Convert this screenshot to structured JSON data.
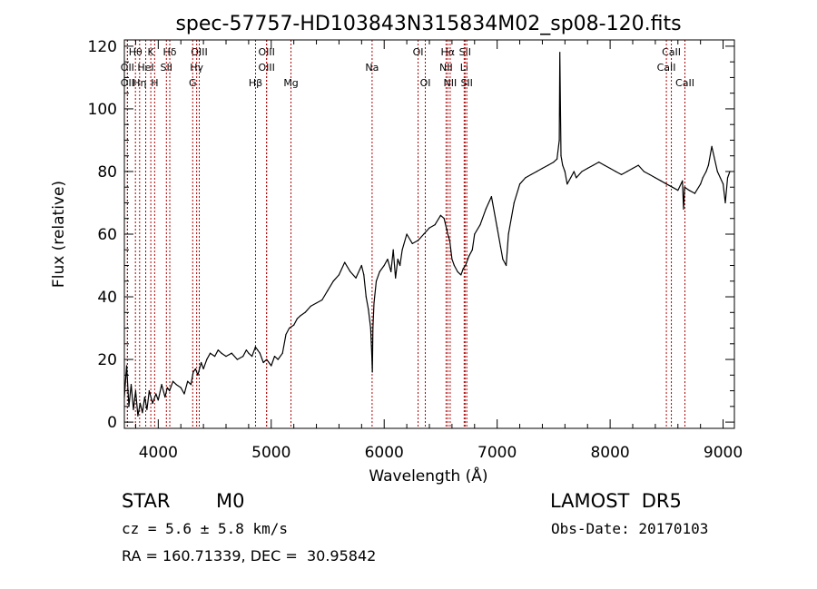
{
  "chart_data": {
    "type": "line",
    "title": "spec-57757-HD103843N315834M02_sp08-120.fits",
    "xlabel": "Wavelength (Å)",
    "ylabel": "Flux (relative)",
    "xlim": [
      3700,
      9100
    ],
    "ylim": [
      -2,
      122
    ],
    "xticks": [
      4000,
      5000,
      6000,
      7000,
      8000,
      9000
    ],
    "yticks": [
      0,
      20,
      40,
      60,
      80,
      100,
      120
    ],
    "grid": false,
    "series": [
      {
        "x": [
          3700,
          3720,
          3740,
          3760,
          3780,
          3800,
          3820,
          3840,
          3860,
          3880,
          3900,
          3920,
          3950,
          3980,
          4000,
          4030,
          4060,
          4080,
          4100,
          4130,
          4160,
          4200,
          4230,
          4260,
          4290,
          4310,
          4330,
          4350,
          4380,
          4400,
          4430,
          4460,
          4500,
          4530,
          4560,
          4600,
          4650,
          4700,
          4750,
          4780,
          4800,
          4830,
          4860,
          4880,
          4900,
          4930,
          4960,
          5000,
          5030,
          5060,
          5100,
          5130,
          5160,
          5200,
          5230,
          5260,
          5300,
          5350,
          5400,
          5450,
          5500,
          5550,
          5600,
          5650,
          5700,
          5750,
          5800,
          5820,
          5840,
          5860,
          5880,
          5890,
          5895,
          5900,
          5910,
          5930,
          5960,
          6000,
          6030,
          6060,
          6080,
          6100,
          6120,
          6140,
          6160,
          6200,
          6250,
          6300,
          6350,
          6400,
          6450,
          6500,
          6530,
          6550,
          6563,
          6580,
          6600,
          6620,
          6650,
          6680,
          6700,
          6720,
          6750,
          6780,
          6800,
          6850,
          6900,
          6950,
          7000,
          7030,
          7050,
          7080,
          7100,
          7150,
          7200,
          7250,
          7300,
          7350,
          7400,
          7450,
          7500,
          7530,
          7550,
          7555,
          7560,
          7565,
          7570,
          7580,
          7600,
          7620,
          7650,
          7680,
          7700,
          7750,
          7800,
          7850,
          7900,
          7950,
          8000,
          8050,
          8100,
          8150,
          8200,
          8250,
          8300,
          8350,
          8400,
          8450,
          8500,
          8550,
          8600,
          8640,
          8650,
          8660,
          8700,
          8750,
          8800,
          8820,
          8850,
          8870,
          8900,
          8950,
          9000,
          9020,
          9040,
          9060
        ],
        "y": [
          8,
          18,
          5,
          12,
          4,
          10,
          2,
          6,
          3,
          8,
          4,
          10,
          6,
          9,
          7,
          12,
          8,
          11,
          10,
          13,
          12,
          11,
          9,
          13,
          12,
          16,
          17,
          15,
          19,
          17,
          20,
          22,
          21,
          23,
          22,
          21,
          22,
          20,
          21,
          23,
          22,
          21,
          24,
          23,
          22,
          19,
          20,
          18,
          21,
          20,
          22,
          28,
          30,
          31,
          33,
          34,
          35,
          37,
          38,
          39,
          42,
          45,
          47,
          51,
          48,
          46,
          50,
          47,
          40,
          36,
          30,
          22,
          16,
          30,
          38,
          45,
          48,
          50,
          52,
          48,
          55,
          46,
          52,
          50,
          55,
          60,
          57,
          58,
          60,
          62,
          63,
          66,
          65,
          62,
          60,
          58,
          52,
          50,
          48,
          47,
          49,
          50,
          53,
          55,
          60,
          63,
          68,
          72,
          62,
          56,
          52,
          50,
          60,
          70,
          76,
          78,
          79,
          80,
          81,
          82,
          83,
          84,
          90,
          118,
          100,
          85,
          84,
          82,
          80,
          76,
          78,
          80,
          78,
          80,
          81,
          82,
          83,
          82,
          81,
          80,
          79,
          80,
          81,
          82,
          80,
          79,
          78,
          77,
          76,
          75,
          74,
          77,
          68,
          75,
          74,
          73,
          76,
          78,
          80,
          82,
          88,
          80,
          76,
          70,
          78,
          80
        ]
      }
    ],
    "lines": [
      {
        "label": "Hθ",
        "x": 3798,
        "row": 0
      },
      {
        "label": "K",
        "x": 3934,
        "row": 0
      },
      {
        "label": "Hδ",
        "x": 4102,
        "row": 0
      },
      {
        "label": "OIII",
        "x": 4363,
        "row": 0
      },
      {
        "label": "OIII",
        "x": 4959,
        "row": 0
      },
      {
        "label": "OI",
        "x": 6300,
        "row": 0
      },
      {
        "label": "Hα",
        "x": 6563,
        "row": 0
      },
      {
        "label": "SII",
        "x": 6716,
        "row": 0
      },
      {
        "label": "CaII",
        "x": 8542,
        "row": 0
      },
      {
        "label": "OII",
        "x": 3727,
        "row": 1
      },
      {
        "label": "HeI",
        "x": 3889,
        "row": 1
      },
      {
        "label": "SII",
        "x": 4072,
        "row": 1
      },
      {
        "label": "Hγ",
        "x": 4340,
        "row": 1
      },
      {
        "label": "OIII",
        "x": 4959,
        "row": 1
      },
      {
        "label": "Na",
        "x": 5893,
        "row": 1
      },
      {
        "label": "NII",
        "x": 6548,
        "row": 1
      },
      {
        "label": "Li",
        "x": 6708,
        "row": 1
      },
      {
        "label": "CaII",
        "x": 8498,
        "row": 1
      },
      {
        "label": "OII",
        "x": 3727,
        "row": 2
      },
      {
        "label": "Hη",
        "x": 3835,
        "row": 2
      },
      {
        "label": "H",
        "x": 3968,
        "row": 2
      },
      {
        "label": "G",
        "x": 4305,
        "row": 2
      },
      {
        "label": "Hβ",
        "x": 4861,
        "row": 2
      },
      {
        "label": "Mg",
        "x": 5175,
        "row": 2
      },
      {
        "label": "OI",
        "x": 6364,
        "row": 2
      },
      {
        "label": "NII",
        "x": 6584,
        "row": 2
      },
      {
        "label": "SII",
        "x": 6731,
        "row": 2
      },
      {
        "label": "CaII",
        "x": 8662,
        "row": 2
      }
    ]
  },
  "info": {
    "class_label": "STAR",
    "subclass_label": "M0",
    "survey_label": "LAMOST  DR5",
    "cz_text": "cz = 5.6 ± 5.8 km/s",
    "obs_date_text": "Obs-Date: 20170103",
    "coords_text": "RA = 160.71339, DEC =  30.95842"
  },
  "colors": {
    "spectrum": "#000000",
    "line_markers": "#b00000"
  }
}
